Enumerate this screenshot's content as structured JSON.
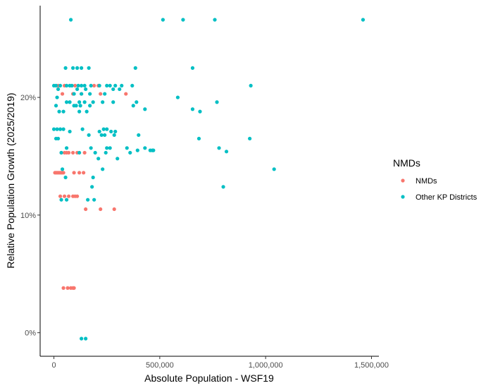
{
  "chart_data": {
    "type": "scatter",
    "xlabel": "Absolute Population - WSF19",
    "ylabel": "Relative Population Growth (2025/2019)",
    "xlim": [
      -65000,
      1535000
    ],
    "ylim": [
      -0.02,
      0.278
    ],
    "x_ticks": [
      0,
      500000,
      1000000,
      1500000
    ],
    "x_tick_labels": [
      "0",
      "500,000",
      "1,000,000",
      "1,500,000"
    ],
    "y_ticks": [
      0,
      0.1,
      0.2
    ],
    "y_tick_labels": [
      "0%",
      "10%",
      "20%"
    ],
    "grid": false,
    "legend": {
      "title": "NMDs",
      "position": "right",
      "entries": [
        "NMDs",
        "Other KP Districts"
      ]
    },
    "colors": {
      "NMDs": "#F8766D",
      "Other KP Districts": "#00BFC4"
    },
    "series": [
      {
        "name": "NMDs",
        "points": [
          [
            5000,
            0.136
          ],
          [
            10000,
            0.136
          ],
          [
            15000,
            0.136
          ],
          [
            20000,
            0.136
          ],
          [
            25000,
            0.136
          ],
          [
            30000,
            0.136
          ],
          [
            35000,
            0.136
          ],
          [
            40000,
            0.136
          ],
          [
            45000,
            0.136
          ],
          [
            95000,
            0.136
          ],
          [
            120000,
            0.136
          ],
          [
            140000,
            0.136
          ],
          [
            35000,
            0.153
          ],
          [
            50000,
            0.153
          ],
          [
            60000,
            0.153
          ],
          [
            70000,
            0.153
          ],
          [
            90000,
            0.153
          ],
          [
            110000,
            0.153
          ],
          [
            145000,
            0.153
          ],
          [
            30000,
            0.116
          ],
          [
            50000,
            0.116
          ],
          [
            70000,
            0.116
          ],
          [
            90000,
            0.116
          ],
          [
            100000,
            0.116
          ],
          [
            110000,
            0.116
          ],
          [
            150000,
            0.105
          ],
          [
            220000,
            0.105
          ],
          [
            285000,
            0.105
          ],
          [
            45000,
            0.038
          ],
          [
            65000,
            0.038
          ],
          [
            80000,
            0.038
          ],
          [
            90000,
            0.038
          ],
          [
            95000,
            0.038
          ],
          [
            40000,
            0.203
          ],
          [
            90000,
            0.203
          ],
          [
            130000,
            0.203
          ],
          [
            220000,
            0.203
          ],
          [
            340000,
            0.203
          ],
          [
            20000,
            0.21
          ],
          [
            50000,
            0.21
          ],
          [
            100000,
            0.21
          ],
          [
            190000,
            0.21
          ],
          [
            210000,
            0.21
          ]
        ]
      },
      {
        "name": "Other KP Districts",
        "points": [
          [
            80000,
            0.266
          ],
          [
            515000,
            0.266
          ],
          [
            610000,
            0.266
          ],
          [
            760000,
            0.266
          ],
          [
            1460000,
            0.266
          ],
          [
            55000,
            0.225
          ],
          [
            90000,
            0.225
          ],
          [
            110000,
            0.225
          ],
          [
            130000,
            0.225
          ],
          [
            165000,
            0.225
          ],
          [
            385000,
            0.225
          ],
          [
            655000,
            0.225
          ],
          [
            0,
            0.21
          ],
          [
            10000,
            0.21
          ],
          [
            30000,
            0.21
          ],
          [
            60000,
            0.21
          ],
          [
            75000,
            0.21
          ],
          [
            85000,
            0.21
          ],
          [
            115000,
            0.21
          ],
          [
            130000,
            0.21
          ],
          [
            145000,
            0.21
          ],
          [
            175000,
            0.21
          ],
          [
            215000,
            0.21
          ],
          [
            250000,
            0.21
          ],
          [
            265000,
            0.21
          ],
          [
            290000,
            0.21
          ],
          [
            320000,
            0.21
          ],
          [
            370000,
            0.21
          ],
          [
            930000,
            0.21
          ],
          [
            20000,
            0.207
          ],
          [
            110000,
            0.207
          ],
          [
            150000,
            0.207
          ],
          [
            280000,
            0.207
          ],
          [
            310000,
            0.207
          ],
          [
            95000,
            0.203
          ],
          [
            130000,
            0.203
          ],
          [
            170000,
            0.203
          ],
          [
            240000,
            0.203
          ],
          [
            585000,
            0.2
          ],
          [
            15000,
            0.2
          ],
          [
            60000,
            0.196
          ],
          [
            75000,
            0.196
          ],
          [
            120000,
            0.196
          ],
          [
            145000,
            0.196
          ],
          [
            185000,
            0.196
          ],
          [
            230000,
            0.196
          ],
          [
            280000,
            0.196
          ],
          [
            390000,
            0.196
          ],
          [
            770000,
            0.196
          ],
          [
            10000,
            0.193
          ],
          [
            95000,
            0.193
          ],
          [
            105000,
            0.193
          ],
          [
            125000,
            0.193
          ],
          [
            170000,
            0.193
          ],
          [
            375000,
            0.193
          ],
          [
            430000,
            0.19
          ],
          [
            655000,
            0.19
          ],
          [
            25000,
            0.188
          ],
          [
            45000,
            0.188
          ],
          [
            120000,
            0.188
          ],
          [
            155000,
            0.188
          ],
          [
            690000,
            0.188
          ],
          [
            0,
            0.173
          ],
          [
            15000,
            0.173
          ],
          [
            30000,
            0.173
          ],
          [
            45000,
            0.173
          ],
          [
            135000,
            0.173
          ],
          [
            235000,
            0.173
          ],
          [
            250000,
            0.173
          ],
          [
            75000,
            0.171
          ],
          [
            215000,
            0.171
          ],
          [
            270000,
            0.171
          ],
          [
            290000,
            0.171
          ],
          [
            165000,
            0.168
          ],
          [
            225000,
            0.168
          ],
          [
            240000,
            0.168
          ],
          [
            285000,
            0.168
          ],
          [
            400000,
            0.168
          ],
          [
            10000,
            0.165
          ],
          [
            20000,
            0.165
          ],
          [
            685000,
            0.165
          ],
          [
            925000,
            0.165
          ],
          [
            60000,
            0.157
          ],
          [
            175000,
            0.157
          ],
          [
            250000,
            0.157
          ],
          [
            265000,
            0.157
          ],
          [
            345000,
            0.157
          ],
          [
            395000,
            0.155
          ],
          [
            430000,
            0.157
          ],
          [
            465000,
            0.155
          ],
          [
            470000,
            0.155
          ],
          [
            780000,
            0.157
          ],
          [
            815000,
            0.154
          ],
          [
            35000,
            0.153
          ],
          [
            120000,
            0.153
          ],
          [
            195000,
            0.153
          ],
          [
            245000,
            0.153
          ],
          [
            360000,
            0.153
          ],
          [
            455000,
            0.155
          ],
          [
            210000,
            0.148
          ],
          [
            300000,
            0.148
          ],
          [
            40000,
            0.139
          ],
          [
            230000,
            0.139
          ],
          [
            1040000,
            0.139
          ],
          [
            55000,
            0.132
          ],
          [
            185000,
            0.132
          ],
          [
            180000,
            0.124
          ],
          [
            800000,
            0.124
          ],
          [
            35000,
            0.113
          ],
          [
            60000,
            0.113
          ],
          [
            160000,
            0.113
          ],
          [
            190000,
            0.113
          ],
          [
            130000,
            -0.005
          ],
          [
            150000,
            -0.005
          ]
        ]
      }
    ]
  }
}
